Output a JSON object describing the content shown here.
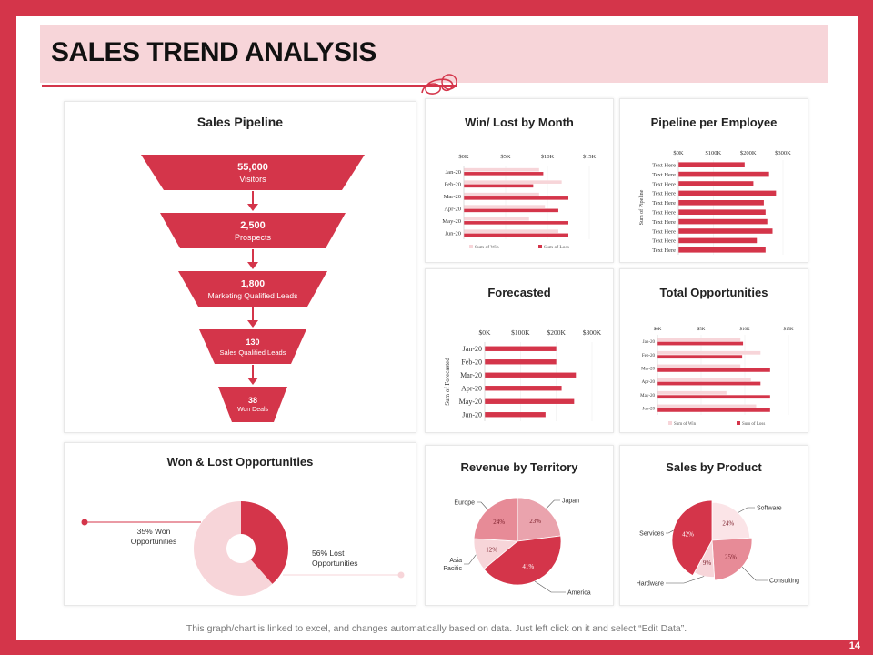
{
  "page": {
    "title": "SALES TREND ANALYSIS",
    "footnote": "This graph/chart is linked to excel, and changes automatically based on data. Just left click on it and select “Edit Data”.",
    "page_number": "14"
  },
  "colors": {
    "accent": "#d4354a",
    "light": "#f7d5d9",
    "mid": "#e78b97"
  },
  "funnel": {
    "title": "Sales Pipeline",
    "stages": [
      {
        "value": "55,000",
        "label": "Visitors"
      },
      {
        "value": "2,500",
        "label": "Prospects"
      },
      {
        "value": "1,800",
        "label": "Marketing Qualified Leads"
      },
      {
        "value": "130",
        "label": "Sales Qualified Leads"
      },
      {
        "value": "38",
        "label": "Won Deals"
      }
    ]
  },
  "chart_data": [
    {
      "id": "win_lost",
      "type": "bar",
      "title": "Win/ Lost by Month",
      "categories": [
        "Jan-20",
        "Feb-20",
        "Mar-20",
        "Apr-20",
        "May-20",
        "Jun-20"
      ],
      "x_ticks": [
        "$0K",
        "$5K",
        "$10K",
        "$15K"
      ],
      "xlim": [
        0,
        15000
      ],
      "series": [
        {
          "name": "Sum of Win",
          "values": [
            9000,
            11700,
            9000,
            9700,
            7800,
            11300
          ]
        },
        {
          "name": "Sum of Loss",
          "values": [
            9500,
            8300,
            12500,
            11300,
            12500,
            12500
          ]
        }
      ],
      "legend": "bottom"
    },
    {
      "id": "pipeline_employee",
      "type": "bar",
      "title": "Pipeline per Employee",
      "ylabel": "Sum of Pipeline",
      "categories": [
        "Text Here",
        "Text Here",
        "Text Here",
        "Text Here",
        "Text Here",
        "Text Here",
        "Text Here",
        "Text Here",
        "Text Here",
        "Text Here"
      ],
      "x_ticks": [
        "$0K",
        "$100K",
        "$200K",
        "$300K"
      ],
      "xlim": [
        0,
        300000
      ],
      "values": [
        190000,
        260000,
        215000,
        280000,
        245000,
        250000,
        255000,
        270000,
        225000,
        250000
      ]
    },
    {
      "id": "forecasted",
      "type": "bar",
      "title": "Forecasted",
      "ylabel": "Sum of Forecasted",
      "categories": [
        "Jan-20",
        "Feb-20",
        "Mar-20",
        "Apr-20",
        "May-20",
        "Jun-20"
      ],
      "x_ticks": [
        "$0K",
        "$100K",
        "$200K",
        "$300K"
      ],
      "xlim": [
        0,
        300000
      ],
      "values": [
        200000,
        200000,
        255000,
        215000,
        250000,
        170000
      ]
    },
    {
      "id": "total_opportunities",
      "type": "bar",
      "title": "Total Opportunities",
      "categories": [
        "Jan-20",
        "Feb-20",
        "Mar-20",
        "Apr-20",
        "May-20",
        "Jun-20"
      ],
      "x_ticks": [
        "$0K",
        "$5K",
        "$10K",
        "$15K"
      ],
      "xlim": [
        0,
        15000
      ],
      "series": [
        {
          "name": "Sum of Win",
          "values": [
            9500,
            11800,
            9500,
            10700,
            7900,
            11300
          ]
        },
        {
          "name": "Sum of Loss",
          "values": [
            9800,
            9700,
            12900,
            11800,
            12900,
            12900
          ]
        }
      ],
      "legend": "bottom"
    },
    {
      "id": "won_lost_opps",
      "type": "pie",
      "title": "Won & Lost Opportunities",
      "labels": [
        "35% Won Opportunities",
        "56% Lost Opportunities"
      ],
      "values": [
        35,
        56
      ]
    },
    {
      "id": "revenue_territory",
      "type": "pie",
      "title": "Revenue by Territory",
      "labels": [
        "Japan",
        "America",
        "Asia Pacific",
        "Europe"
      ],
      "values": [
        23,
        41,
        12,
        24
      ],
      "value_labels": [
        "23%",
        "41%",
        "12%",
        "24%"
      ]
    },
    {
      "id": "sales_product",
      "type": "pie",
      "title": "Sales by Product",
      "labels": [
        "Software",
        "Consulting",
        "Hardware",
        "Services"
      ],
      "values": [
        24,
        25,
        9,
        42
      ],
      "value_labels": [
        "24%",
        "25%",
        "9%",
        "42%"
      ]
    }
  ]
}
